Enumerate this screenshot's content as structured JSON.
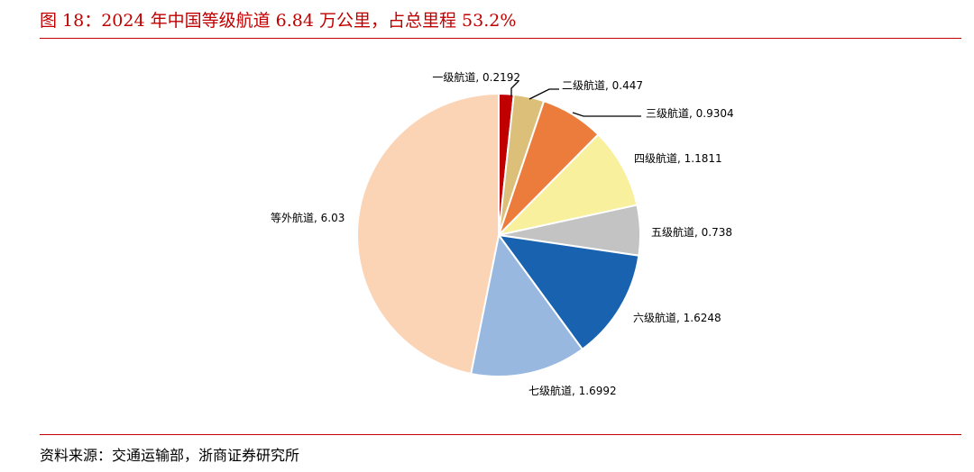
{
  "title": "图 18：2024 年中国等级航道 6.84 万公里，占总里程 53.2%",
  "source": "资料来源：交通运输部，浙商证券研究所",
  "chart_data": {
    "type": "pie",
    "start_angle_deg": 0,
    "direction": "clockwise",
    "slices": [
      {
        "label": "一级航道",
        "value": 0.2192,
        "value_text": "0.2192",
        "color": "#c00000"
      },
      {
        "label": "二级航道",
        "value": 0.447,
        "value_text": "0.447",
        "color": "#dcc07a"
      },
      {
        "label": "三级航道",
        "value": 0.9304,
        "value_text": "0.9304",
        "color": "#ec7c3c"
      },
      {
        "label": "四级航道",
        "value": 1.1811,
        "value_text": "1.1811",
        "color": "#f8f09c"
      },
      {
        "label": "五级航道",
        "value": 0.738,
        "value_text": "0.738",
        "color": "#c3c3c3"
      },
      {
        "label": "六级航道",
        "value": 1.6248,
        "value_text": "1.6248",
        "color": "#1862b0"
      },
      {
        "label": "七级航道",
        "value": 1.6992,
        "value_text": "1.6992",
        "color": "#98b8e0"
      },
      {
        "label": "等外航道",
        "value": 6.03,
        "value_text": "6.03",
        "color": "#fbd3b5"
      }
    ],
    "data_label_separator": ", "
  }
}
